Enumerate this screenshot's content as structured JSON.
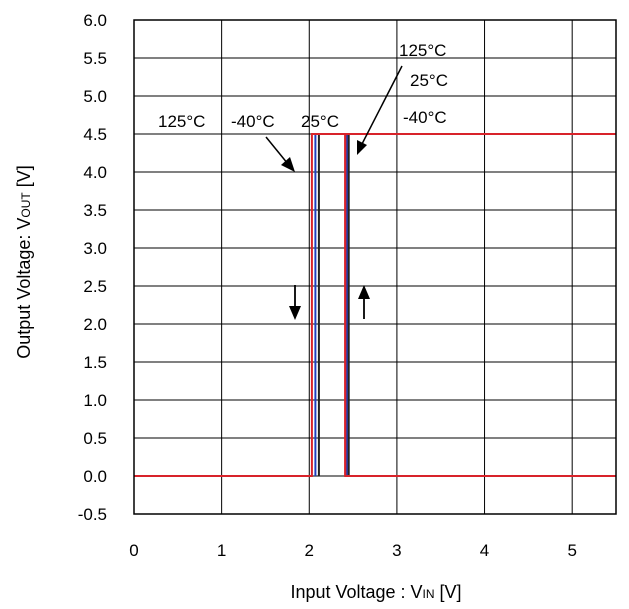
{
  "chart_data": {
    "type": "line",
    "title": "",
    "xlabel": "Input Voltage : V",
    "xlabel_sub": "IN",
    "xlabel_unit": " [V]",
    "ylabel": "Output Voltage: V",
    "ylabel_sub": "OUT",
    "ylabel_unit": " [V]",
    "xlim": [
      0,
      5.5
    ],
    "ylim": [
      -0.5,
      6.0
    ],
    "x_ticks": [
      0,
      1,
      2,
      3,
      4,
      5
    ],
    "x_tick_labels": [
      "0",
      "1",
      "2",
      "3",
      "4",
      "5"
    ],
    "y_ticks": [
      -0.5,
      0.0,
      0.5,
      1.0,
      1.5,
      2.0,
      2.5,
      3.0,
      3.5,
      4.0,
      4.5,
      5.0,
      5.5,
      6.0
    ],
    "y_tick_labels": [
      "-0.5",
      "0.0",
      "0.5",
      "1.0",
      "1.5",
      "2.0",
      "2.5",
      "3.0",
      "3.5",
      "4.0",
      "4.5",
      "5.0",
      "5.5",
      "6.0"
    ],
    "grid": true,
    "series": [
      {
        "name": "125°C",
        "color": "#d8232a",
        "x": [
          0,
          2.03,
          2.03,
          2.41,
          2.41,
          5.5
        ],
        "y": [
          0.0,
          0.0,
          4.5,
          4.5,
          0.0,
          0.0
        ],
        "rising": {
          "x": [
            2.41,
            2.41,
            5.5
          ],
          "y": [
            0.0,
            4.5,
            4.5
          ]
        }
      },
      {
        "name": "25°C",
        "color": "#1f3fbf",
        "x": [
          2.07,
          2.07
        ],
        "y": [
          0.0,
          4.5
        ],
        "rising": {
          "x": [
            2.43,
            2.43
          ],
          "y": [
            0.0,
            4.5
          ]
        }
      },
      {
        "name": "-40°C",
        "color": "#222222",
        "x": [
          2.11,
          2.11
        ],
        "y": [
          0.0,
          4.5
        ],
        "rising": {
          "x": [
            2.45,
            2.45
          ],
          "y": [
            0.0,
            4.5
          ]
        }
      }
    ],
    "annotations": {
      "falling_labels": [
        "125°C",
        "-40°C",
        "25°C"
      ],
      "rising_labels": [
        "125°C",
        "25°C",
        "-40°C"
      ]
    }
  }
}
